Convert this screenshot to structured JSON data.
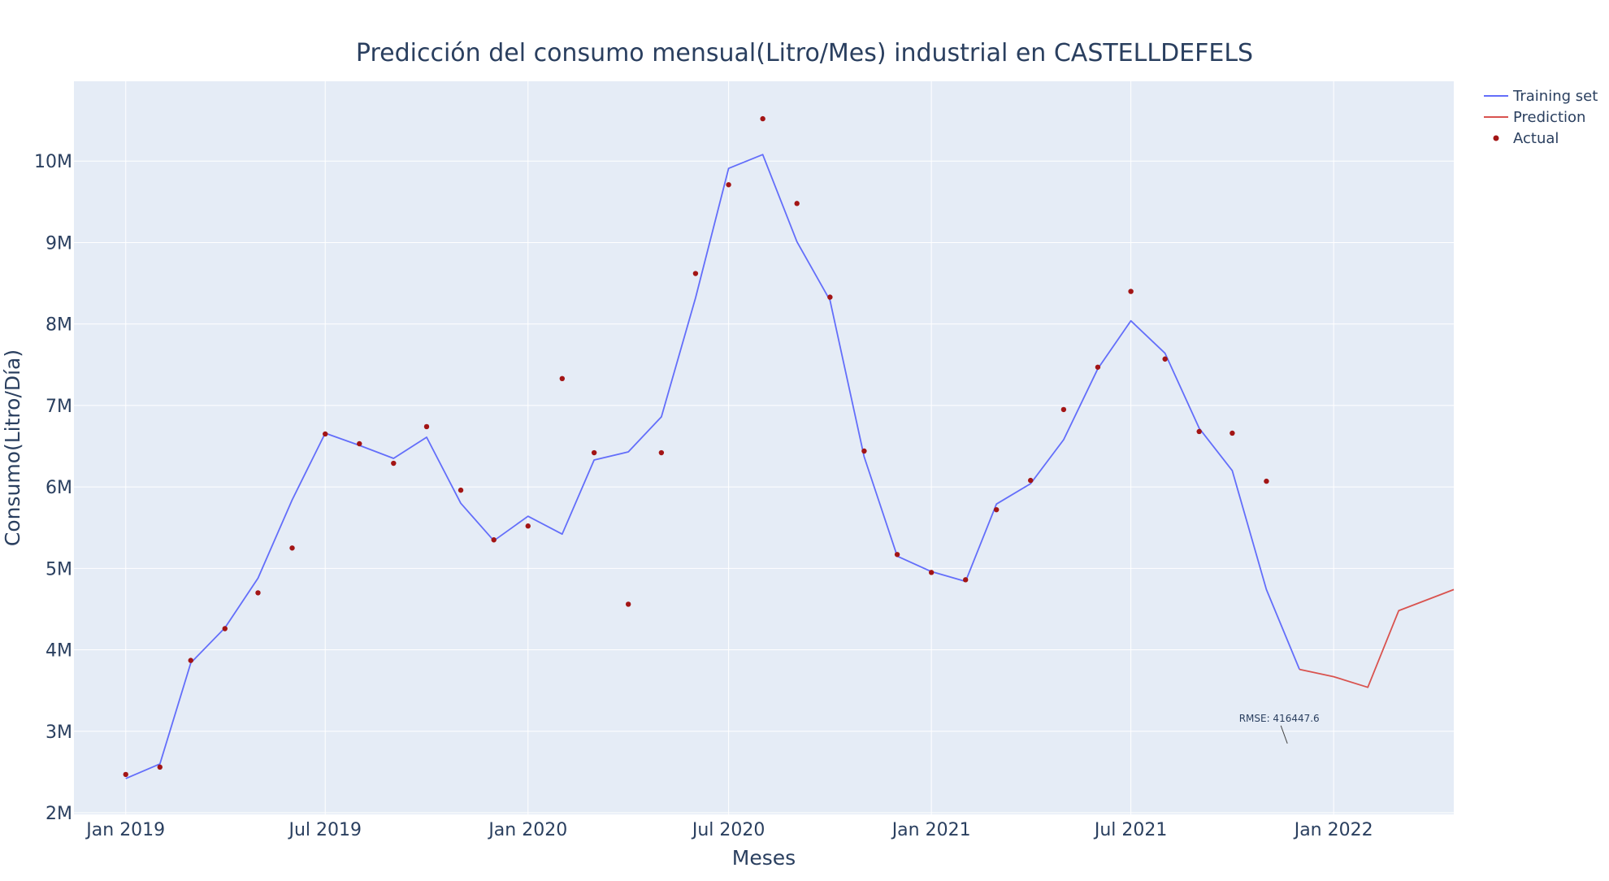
{
  "chart_data": {
    "type": "line",
    "title": "Predicción del consumo mensual(Litro/Mes) industrial en CASTELLDEFELS",
    "xlabel": "Meses",
    "ylabel": "Consumo(Litro/Día)",
    "xlim": [
      "2018-11-15",
      "2022-04-20"
    ],
    "ylim": [
      1980000,
      10980000
    ],
    "x_ticks": [
      {
        "date": "2019-01-01",
        "label": "Jan 2019"
      },
      {
        "date": "2019-07-01",
        "label": "Jul 2019"
      },
      {
        "date": "2020-01-01",
        "label": "Jan 2020"
      },
      {
        "date": "2020-07-01",
        "label": "Jul 2020"
      },
      {
        "date": "2021-01-01",
        "label": "Jan 2021"
      },
      {
        "date": "2021-07-01",
        "label": "Jul 2021"
      },
      {
        "date": "2022-01-01",
        "label": "Jan 2022"
      }
    ],
    "y_ticks": [
      {
        "value": 2000000,
        "label": "2M"
      },
      {
        "value": 3000000,
        "label": "3M"
      },
      {
        "value": 4000000,
        "label": "4M"
      },
      {
        "value": 5000000,
        "label": "5M"
      },
      {
        "value": 6000000,
        "label": "6M"
      },
      {
        "value": 7000000,
        "label": "7M"
      },
      {
        "value": 8000000,
        "label": "8M"
      },
      {
        "value": 9000000,
        "label": "9M"
      },
      {
        "value": 10000000,
        "label": "10M"
      }
    ],
    "grid": true,
    "legend_position": "top-right",
    "series": [
      {
        "name": "Training set",
        "mode": "line",
        "color": "#636efa",
        "x": [
          "2019-01-01",
          "2019-02-01",
          "2019-03-01",
          "2019-04-01",
          "2019-05-01",
          "2019-06-01",
          "2019-07-01",
          "2019-08-01",
          "2019-09-01",
          "2019-10-01",
          "2019-11-01",
          "2019-12-01",
          "2020-01-01",
          "2020-02-01",
          "2020-03-01",
          "2020-04-01",
          "2020-05-01",
          "2020-06-01",
          "2020-07-01",
          "2020-08-01",
          "2020-09-01",
          "2020-10-01",
          "2020-11-01",
          "2020-12-01",
          "2021-01-01",
          "2021-02-01",
          "2021-03-01",
          "2021-04-01",
          "2021-05-01",
          "2021-06-01",
          "2021-07-01",
          "2021-08-01",
          "2021-09-01",
          "2021-10-01",
          "2021-11-01",
          "2021-12-01"
        ],
        "y": [
          2420000,
          2600000,
          3840000,
          4270000,
          4880000,
          5840000,
          6660000,
          6510000,
          6350000,
          6610000,
          5800000,
          5340000,
          5640000,
          5420000,
          6330000,
          6430000,
          6860000,
          8320000,
          9910000,
          10080000,
          9010000,
          8290000,
          6370000,
          5150000,
          4960000,
          4840000,
          5790000,
          6040000,
          6580000,
          7450000,
          8040000,
          7640000,
          6720000,
          6200000,
          4740000,
          3760000
        ]
      },
      {
        "name": "Prediction",
        "mode": "line",
        "color": "#d9534f",
        "x": [
          "2021-12-01",
          "2022-01-01",
          "2022-02-01",
          "2022-03-01",
          "2022-04-20"
        ],
        "y": [
          3760000,
          3670000,
          3540000,
          4480000,
          4740000
        ]
      },
      {
        "name": "Actual",
        "mode": "markers",
        "color": "#a31515",
        "x": [
          "2019-01-01",
          "2019-02-01",
          "2019-03-01",
          "2019-04-01",
          "2019-05-01",
          "2019-06-01",
          "2019-07-01",
          "2019-08-01",
          "2019-09-01",
          "2019-10-01",
          "2019-11-01",
          "2019-12-01",
          "2020-01-01",
          "2020-02-01",
          "2020-03-01",
          "2020-04-01",
          "2020-05-01",
          "2020-06-01",
          "2020-07-01",
          "2020-08-01",
          "2020-09-01",
          "2020-10-01",
          "2020-11-01",
          "2020-12-01",
          "2021-01-01",
          "2021-02-01",
          "2021-03-01",
          "2021-04-01",
          "2021-05-01",
          "2021-06-01",
          "2021-07-01",
          "2021-08-01",
          "2021-09-01",
          "2021-10-01",
          "2021-11-01"
        ],
        "y": [
          2470000,
          2560000,
          3870000,
          4260000,
          4700000,
          5250000,
          6650000,
          6530000,
          6290000,
          6740000,
          5960000,
          5350000,
          5520000,
          7330000,
          6420000,
          4560000,
          6420000,
          8620000,
          9710000,
          10520000,
          9480000,
          8330000,
          6440000,
          5170000,
          4950000,
          4860000,
          5720000,
          6080000,
          6950000,
          7470000,
          8400000,
          7570000,
          6680000,
          6660000,
          6070000
        ]
      }
    ],
    "annotations": [
      {
        "text": "RMSE: 416447.6",
        "x": "2021-11-20",
        "y": 2850000
      }
    ]
  }
}
